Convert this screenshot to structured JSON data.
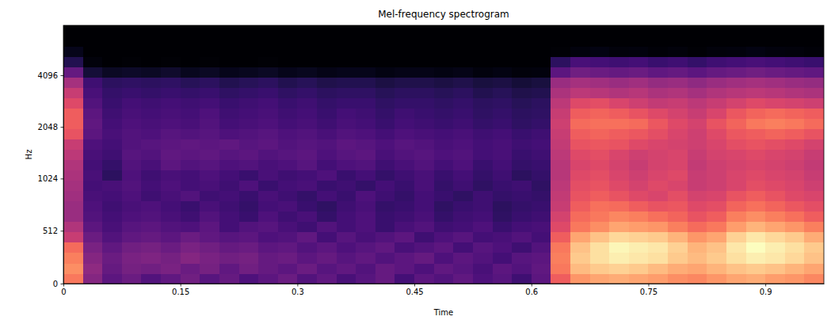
{
  "chart_data": {
    "type": "heatmap",
    "title": "Mel-frequency spectrogram",
    "x_label": "Time",
    "y_label": "Hz",
    "log": "y",
    "grid": false,
    "xlim": [
      0,
      0.975
    ],
    "ylim": [
      0,
      8000
    ],
    "xticks": [
      0,
      0.15,
      0.3,
      0.45,
      0.6,
      0.75,
      0.9
    ],
    "yticks": [
      0,
      512,
      1024,
      2048,
      4096
    ],
    "x_bins": [
      0,
      0.025,
      0.05,
      0.075,
      0.1,
      0.125,
      0.15,
      0.175,
      0.2,
      0.225,
      0.25,
      0.275,
      0.3,
      0.325,
      0.35,
      0.375,
      0.4,
      0.425,
      0.45,
      0.475,
      0.5,
      0.525,
      0.55,
      0.575,
      0.6,
      0.625,
      0.65,
      0.675,
      0.7,
      0.725,
      0.75,
      0.775,
      0.8,
      0.825,
      0.85,
      0.875,
      0.9,
      0.925,
      0.95,
      0.975
    ],
    "y_bins": [
      0,
      100,
      200,
      300,
      400,
      500,
      600,
      700,
      800,
      900,
      1000,
      1149,
      1320,
      1516,
      1741,
      2000,
      2297,
      2639,
      3031,
      3482,
      4000,
      4595,
      5278,
      6063,
      6964,
      8000
    ],
    "values": [
      [
        -18,
        -42,
        -50,
        -47,
        -52,
        -49,
        -46,
        -51,
        -48,
        -53,
        -50,
        -47,
        -52,
        -49,
        -54,
        -51,
        -48,
        -55,
        -50,
        -52,
        -49,
        -53,
        -51,
        -56,
        -50,
        -22,
        -14,
        -12,
        -11,
        -12,
        -13,
        -15,
        -16,
        -14,
        -12,
        -11,
        -13,
        -14,
        -16
      ],
      [
        -15,
        -40,
        -48,
        -45,
        -46,
        -44,
        -47,
        -45,
        -49,
        -46,
        -48,
        -50,
        -47,
        -51,
        -49,
        -52,
        -48,
        -50,
        -53,
        -49,
        -51,
        -54,
        -50,
        -52,
        -49,
        -18,
        -9,
        -7,
        -6,
        -7,
        -9,
        -11,
        -12,
        -10,
        -8,
        -7,
        -8,
        -10,
        -12
      ],
      [
        -17,
        -42,
        -47,
        -44,
        -43,
        -45,
        -42,
        -44,
        -46,
        -45,
        -48,
        -47,
        -50,
        -48,
        -51,
        -49,
        -52,
        -50,
        -48,
        -53,
        -50,
        -52,
        -55,
        -51,
        -50,
        -17,
        -7,
        -4,
        -2,
        -3,
        -4,
        -7,
        -9,
        -7,
        -4,
        -2,
        -3,
        -5,
        -8
      ],
      [
        -20,
        -44,
        -49,
        -46,
        -45,
        -47,
        -44,
        -46,
        -48,
        -47,
        -50,
        -49,
        -52,
        -50,
        -53,
        -51,
        -49,
        -54,
        -52,
        -50,
        -55,
        -51,
        -53,
        -56,
        -52,
        -18,
        -8,
        -4,
        -1,
        -2,
        -3,
        -6,
        -10,
        -8,
        -3,
        0,
        -2,
        -4,
        -7
      ],
      [
        -30,
        -47,
        -52,
        -49,
        -48,
        -50,
        -47,
        -49,
        -51,
        -50,
        -53,
        -52,
        -49,
        -55,
        -51,
        -54,
        -52,
        -50,
        -56,
        -53,
        -51,
        -55,
        -54,
        -52,
        -55,
        -22,
        -12,
        -8,
        -5,
        -6,
        -7,
        -10,
        -14,
        -12,
        -6,
        -3,
        -5,
        -7,
        -11
      ],
      [
        -34,
        -50,
        -54,
        -51,
        -50,
        -52,
        -53,
        -50,
        -55,
        -52,
        -51,
        -54,
        -56,
        -52,
        -55,
        -53,
        -57,
        -54,
        -52,
        -56,
        -55,
        -53,
        -57,
        -55,
        -54,
        -26,
        -18,
        -15,
        -12,
        -13,
        -14,
        -17,
        -20,
        -18,
        -13,
        -10,
        -12,
        -14,
        -17
      ],
      [
        -38,
        -52,
        -55,
        -53,
        -52,
        -54,
        -56,
        -52,
        -55,
        -57,
        -53,
        -56,
        -54,
        -58,
        -55,
        -53,
        -57,
        -56,
        -54,
        -58,
        -56,
        -55,
        -59,
        -57,
        -56,
        -28,
        -20,
        -18,
        -16,
        -17,
        -19,
        -21,
        -24,
        -22,
        -17,
        -15,
        -17,
        -19,
        -22
      ],
      [
        -38,
        -53,
        -56,
        -54,
        -53,
        -55,
        -57,
        -54,
        -56,
        -58,
        -55,
        -54,
        -57,
        -59,
        -56,
        -54,
        -58,
        -57,
        -55,
        -59,
        -57,
        -56,
        -60,
        -58,
        -57,
        -30,
        -22,
        -19,
        -20,
        -22,
        -24,
        -23,
        -26,
        -25,
        -21,
        -19,
        -21,
        -23,
        -25
      ],
      [
        -37,
        -54,
        -55,
        -53,
        -56,
        -54,
        -52,
        -56,
        -55,
        -57,
        -54,
        -56,
        -58,
        -55,
        -57,
        -53,
        -56,
        -58,
        -55,
        -57,
        -59,
        -56,
        -58,
        -57,
        -58,
        -31,
        -24,
        -22,
        -24,
        -26,
        -27,
        -25,
        -28,
        -27,
        -24,
        -22,
        -24,
        -26,
        -27
      ],
      [
        -36,
        -55,
        -54,
        -52,
        -55,
        -53,
        -55,
        -54,
        -56,
        -53,
        -57,
        -55,
        -54,
        -57,
        -56,
        -58,
        -55,
        -57,
        -54,
        -58,
        -56,
        -59,
        -57,
        -56,
        -59,
        -32,
        -25,
        -24,
        -26,
        -28,
        -26,
        -27,
        -30,
        -29,
        -27,
        -25,
        -26,
        -27,
        -29
      ],
      [
        -35,
        -54,
        -60,
        -53,
        -56,
        -54,
        -55,
        -53,
        -55,
        -57,
        -54,
        -56,
        -55,
        -53,
        -57,
        -55,
        -58,
        -56,
        -54,
        -57,
        -55,
        -58,
        -56,
        -60,
        -58,
        -33,
        -26,
        -25,
        -27,
        -29,
        -27,
        -26,
        -30,
        -29,
        -27,
        -26,
        -27,
        -28,
        -30
      ],
      [
        -34,
        -55,
        -58,
        -52,
        -54,
        -50,
        -52,
        -51,
        -53,
        -52,
        -54,
        -53,
        -51,
        -55,
        -53,
        -52,
        -56,
        -54,
        -52,
        -55,
        -53,
        -57,
        -55,
        -58,
        -57,
        -33,
        -27,
        -26,
        -28,
        -30,
        -28,
        -27,
        -31,
        -29,
        -28,
        -27,
        -28,
        -29,
        -31
      ],
      [
        -32,
        -54,
        -56,
        -51,
        -52,
        -49,
        -50,
        -49,
        -51,
        -50,
        -52,
        -51,
        -50,
        -53,
        -51,
        -50,
        -54,
        -52,
        -51,
        -53,
        -52,
        -55,
        -54,
        -57,
        -56,
        -32,
        -26,
        -25,
        -27,
        -29,
        -28,
        -27,
        -30,
        -28,
        -27,
        -26,
        -27,
        -28,
        -30
      ],
      [
        -30,
        -53,
        -55,
        -52,
        -51,
        -50,
        -49,
        -50,
        -49,
        -51,
        -50,
        -52,
        -51,
        -52,
        -50,
        -51,
        -53,
        -51,
        -52,
        -54,
        -53,
        -55,
        -54,
        -56,
        -55,
        -31,
        -24,
        -23,
        -24,
        -26,
        -27,
        -28,
        -29,
        -27,
        -25,
        -24,
        -25,
        -26,
        -28
      ],
      [
        -24,
        -50,
        -54,
        -52,
        -53,
        -51,
        -52,
        -51,
        -53,
        -52,
        -51,
        -53,
        -52,
        -54,
        -52,
        -53,
        -55,
        -53,
        -54,
        -55,
        -54,
        -56,
        -55,
        -57,
        -56,
        -30,
        -22,
        -21,
        -22,
        -23,
        -25,
        -27,
        -29,
        -26,
        -23,
        -22,
        -21,
        -22,
        -24
      ],
      [
        -22,
        -49,
        -55,
        -53,
        -54,
        -53,
        -54,
        -52,
        -55,
        -54,
        -53,
        -55,
        -54,
        -56,
        -54,
        -55,
        -57,
        -55,
        -56,
        -57,
        -56,
        -58,
        -57,
        -59,
        -58,
        -29,
        -20,
        -19,
        -19,
        -20,
        -23,
        -26,
        -28,
        -24,
        -21,
        -18,
        -17,
        -18,
        -20
      ],
      [
        -22,
        -50,
        -56,
        -54,
        -55,
        -54,
        -55,
        -53,
        -56,
        -55,
        -54,
        -56,
        -55,
        -57,
        -55,
        -56,
        -58,
        -56,
        -57,
        -58,
        -57,
        -59,
        -58,
        -60,
        -59,
        -30,
        -22,
        -21,
        -22,
        -24,
        -26,
        -28,
        -30,
        -27,
        -23,
        -21,
        -20,
        -21,
        -22
      ],
      [
        -26,
        -52,
        -57,
        -55,
        -56,
        -55,
        -56,
        -55,
        -57,
        -56,
        -55,
        -57,
        -56,
        -58,
        -57,
        -57,
        -59,
        -58,
        -58,
        -59,
        -58,
        -60,
        -59,
        -61,
        -60,
        -32,
        -26,
        -25,
        -27,
        -29,
        -31,
        -30,
        -32,
        -30,
        -28,
        -26,
        -27,
        -28,
        -29
      ],
      [
        -30,
        -54,
        -58,
        -57,
        -58,
        -57,
        -58,
        -57,
        -59,
        -58,
        -57,
        -59,
        -58,
        -60,
        -59,
        -59,
        -61,
        -60,
        -60,
        -61,
        -60,
        -62,
        -61,
        -63,
        -62,
        -35,
        -32,
        -33,
        -34,
        -33,
        -35,
        -34,
        -36,
        -34,
        -33,
        -32,
        -33,
        -34,
        -35
      ],
      [
        -36,
        -56,
        -60,
        -59,
        -60,
        -59,
        -61,
        -60,
        -62,
        -61,
        -60,
        -62,
        -61,
        -63,
        -62,
        -62,
        -64,
        -63,
        -63,
        -64,
        -63,
        -65,
        -64,
        -66,
        -65,
        -38,
        -36,
        -37,
        -38,
        -37,
        -39,
        -38,
        -40,
        -38,
        -37,
        -36,
        -37,
        -38,
        -39
      ],
      [
        -48,
        -66,
        -70,
        -69,
        -70,
        -68,
        -71,
        -70,
        -72,
        -71,
        -70,
        -72,
        -71,
        -73,
        -72,
        -72,
        -74,
        -73,
        -73,
        -74,
        -73,
        -75,
        -74,
        -76,
        -75,
        -50,
        -46,
        -47,
        -48,
        -47,
        -49,
        -48,
        -50,
        -48,
        -47,
        -46,
        -47,
        -48,
        -49
      ],
      [
        -62,
        -76,
        -79,
        -78,
        -79,
        -78,
        -79,
        -78,
        -80,
        -79,
        -78,
        -80,
        -79,
        -80,
        -79,
        -80,
        -80,
        -79,
        -80,
        -80,
        -79,
        -80,
        -80,
        -80,
        -80,
        -60,
        -54,
        -55,
        -56,
        -55,
        -57,
        -56,
        -58,
        -56,
        -55,
        -54,
        -55,
        -56,
        -57
      ],
      [
        -72,
        -80,
        -80,
        -80,
        -80,
        -80,
        -80,
        -80,
        -80,
        -80,
        -80,
        -80,
        -80,
        -80,
        -80,
        -80,
        -80,
        -80,
        -80,
        -80,
        -80,
        -80,
        -80,
        -80,
        -80,
        -78,
        -75,
        -74,
        -76,
        -75,
        -77,
        -76,
        -78,
        -76,
        -75,
        -74,
        -75,
        -76,
        -77
      ],
      [
        -80,
        -80,
        -80,
        -80,
        -80,
        -80,
        -80,
        -80,
        -80,
        -80,
        -80,
        -80,
        -80,
        -80,
        -80,
        -80,
        -80,
        -80,
        -80,
        -80,
        -80,
        -80,
        -80,
        -80,
        -80,
        -80,
        -80,
        -80,
        -80,
        -80,
        -80,
        -80,
        -80,
        -80,
        -80,
        -80,
        -80,
        -80,
        -80
      ],
      [
        -80,
        -80,
        -80,
        -80,
        -80,
        -80,
        -80,
        -80,
        -80,
        -80,
        -80,
        -80,
        -80,
        -80,
        -80,
        -80,
        -80,
        -80,
        -80,
        -80,
        -80,
        -80,
        -80,
        -80,
        -80,
        -80,
        -80,
        -80,
        -80,
        -80,
        -80,
        -80,
        -80,
        -80,
        -80,
        -80,
        -80,
        -80,
        -80
      ]
    ]
  }
}
